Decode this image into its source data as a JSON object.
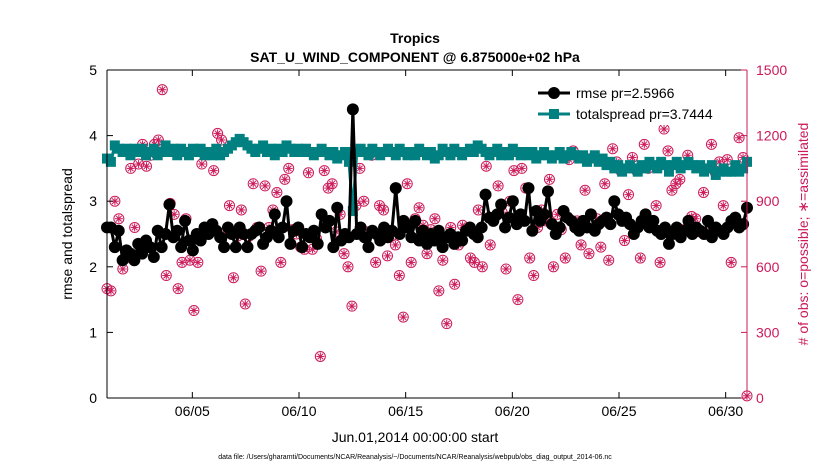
{
  "chart_data": {
    "type": "line",
    "title": "Tropics",
    "subtitle": "SAT_U_WIND_COMPONENT @ 6.875000e+02 hPa",
    "xlabel": "Jun.01,2014 00:00:00 start",
    "ylabel": "rmse and totalspread",
    "y2label": "# of obs: o=possible; ∗=assimilated",
    "footnote": "data file: /Users/gharamti/Documents/NCAR/Reanalysis/~/Documents/NCAR/Reanalysis/webpub/obs_diag_output_2014-06.nc",
    "xlim": [
      1,
      31
    ],
    "ylim": [
      0,
      5
    ],
    "y2lim": [
      0,
      1500
    ],
    "xticks": [
      5,
      10,
      15,
      20,
      25,
      30
    ],
    "xticklabels": [
      "06/05",
      "06/10",
      "06/15",
      "06/20",
      "06/25",
      "06/30"
    ],
    "yticks": [
      0,
      1,
      2,
      3,
      4,
      5
    ],
    "y2ticks": [
      0,
      300,
      600,
      900,
      1200,
      1500
    ],
    "colors": {
      "rmse": "#000000",
      "totalspread": "#008080",
      "obs": "#cc1a5a"
    },
    "legend_position": "top-right",
    "series": [
      {
        "name": "rmse",
        "legend": "rmse pr=2.5966",
        "axis": "left",
        "values": [
          2.6,
          2.6,
          2.3,
          2.55,
          2.1,
          2.25,
          2.2,
          2.1,
          2.35,
          2.2,
          2.4,
          2.3,
          2.15,
          2.55,
          2.3,
          2.5,
          2.95,
          2.45,
          2.55,
          2.3,
          2.7,
          2.4,
          2.25,
          2.5,
          2.4,
          2.6,
          2.5,
          2.65,
          2.55,
          2.45,
          2.3,
          2.6,
          2.5,
          2.3,
          2.6,
          2.5,
          2.3,
          2.5,
          2.55,
          2.6,
          2.35,
          2.45,
          2.55,
          2.8,
          2.45,
          2.6,
          3.0,
          2.35,
          2.55,
          2.6,
          2.3,
          2.5,
          2.45,
          2.55,
          2.35,
          2.8,
          2.6,
          2.7,
          2.3,
          2.9,
          2.4,
          2.5,
          2.45,
          4.4,
          2.5,
          2.6,
          2.45,
          2.3,
          2.55,
          2.5,
          2.4,
          2.6,
          2.45,
          2.55,
          3.2,
          2.5,
          2.7,
          2.6,
          2.45,
          2.7,
          2.4,
          2.55,
          2.35,
          2.5,
          2.4,
          2.55,
          2.3,
          2.45,
          2.5,
          2.35,
          2.45,
          2.4,
          2.55,
          2.6,
          2.5,
          2.45,
          2.6,
          3.1,
          2.75,
          2.7,
          2.8,
          2.95,
          2.6,
          2.75,
          3.0,
          2.65,
          2.8,
          2.7,
          3.2,
          2.55,
          2.85,
          2.7,
          2.8,
          3.15,
          2.65,
          2.5,
          2.6,
          2.85,
          2.75,
          2.7,
          2.6,
          2.55,
          2.7,
          2.6,
          2.8,
          2.55,
          2.65,
          2.7,
          2.75,
          2.65,
          3.0,
          2.8,
          2.7,
          2.75,
          2.65,
          2.5,
          2.6,
          2.7,
          2.8,
          2.6,
          2.7,
          2.55,
          2.5,
          2.6,
          2.35,
          2.5,
          2.6,
          2.45,
          2.55,
          2.7,
          2.5,
          2.6,
          2.55,
          2.5,
          2.7,
          2.45,
          2.6,
          2.55,
          2.5,
          2.6,
          2.7,
          2.75,
          2.6,
          2.65,
          2.9
        ]
      },
      {
        "name": "totalspread",
        "legend": "totalspread pr=3.7444",
        "axis": "left",
        "values": [
          3.65,
          3.6,
          3.85,
          3.8,
          3.75,
          3.8,
          3.7,
          3.8,
          3.75,
          3.8,
          3.7,
          3.75,
          3.8,
          3.7,
          3.75,
          3.85,
          3.75,
          3.8,
          3.7,
          3.8,
          3.75,
          3.7,
          3.8,
          3.75,
          3.8,
          3.7,
          3.75,
          3.7,
          3.8,
          3.7,
          3.75,
          3.8,
          3.85,
          3.9,
          3.95,
          3.9,
          3.85,
          3.8,
          3.75,
          3.8,
          3.85,
          3.75,
          3.8,
          3.7,
          3.8,
          3.75,
          3.85,
          3.8,
          3.75,
          3.8,
          3.75,
          3.8,
          3.75,
          3.7,
          3.75,
          3.8,
          3.75,
          3.7,
          3.75,
          3.65,
          3.7,
          3.75,
          3.6,
          2.85,
          3.75,
          3.8,
          3.75,
          3.7,
          3.8,
          3.75,
          3.7,
          3.75,
          3.8,
          3.75,
          3.7,
          3.8,
          3.75,
          3.7,
          3.75,
          3.7,
          3.8,
          3.75,
          3.7,
          3.75,
          3.65,
          3.7,
          3.8,
          3.75,
          3.7,
          3.8,
          3.75,
          3.7,
          3.75,
          3.8,
          3.75,
          3.85,
          3.8,
          3.75,
          3.7,
          3.75,
          3.8,
          3.7,
          3.75,
          3.7,
          3.8,
          3.75,
          3.7,
          3.75,
          3.7,
          3.75,
          3.65,
          3.7,
          3.75,
          3.7,
          3.65,
          3.7,
          3.75,
          3.65,
          3.7,
          3.75,
          3.7,
          3.65,
          3.7,
          3.6,
          3.65,
          3.7,
          3.6,
          3.65,
          3.55,
          3.6,
          3.5,
          3.55,
          3.45,
          3.5,
          3.55,
          3.5,
          3.45,
          3.55,
          3.5,
          3.6,
          3.55,
          3.5,
          3.6,
          3.55,
          3.45,
          3.55,
          3.6,
          3.5,
          3.55,
          3.6,
          3.55,
          3.5,
          3.55,
          3.45,
          3.5,
          3.55,
          3.4,
          3.45,
          3.5,
          3.45,
          3.45,
          3.55,
          3.45,
          3.5,
          3.6
        ]
      },
      {
        "name": "obs possible",
        "axis": "right",
        "values": [
          500,
          490,
          900,
          820,
          590,
          640,
          1050,
          780,
          1070,
          1160,
          1060,
          1110,
          1160,
          1180,
          1410,
          560,
          890,
          840,
          500,
          620,
          820,
          630,
          400,
          620,
          1070,
          760,
          780,
          1040,
          1210,
          1180,
          760,
          880,
          550,
          740,
          860,
          430,
          740,
          980,
          780,
          580,
          970,
          780,
          860,
          940,
          620,
          1000,
          1050,
          770,
          750,
          690,
          680,
          1030,
          680,
          730,
          190,
          1040,
          960,
          980,
          760,
          840,
          660,
          600,
          420,
          880,
          1050,
          900,
          760,
          1110,
          620,
          880,
          860,
          650,
          740,
          700,
          560,
          370,
          980,
          620,
          820,
          870,
          790,
          660,
          770,
          820,
          490,
          630,
          340,
          780,
          520,
          700,
          790,
          770,
          640,
          620,
          860,
          600,
          1060,
          700,
          820,
          970,
          850,
          590,
          900,
          1040,
          450,
          1050,
          960,
          640,
          560,
          780,
          860,
          810,
          1000,
          600,
          840,
          770,
          640,
          1090,
          1130,
          810,
          700,
          950,
          660,
          1100,
          820,
          690,
          980,
          630,
          1140,
          1080,
          1040,
          720,
          930,
          1100,
          1040,
          640,
          1160,
          1050,
          810,
          880,
          620,
          1230,
          1130,
          950,
          980,
          1000,
          770,
          1110,
          830,
          820,
          760,
          940,
          750,
          1160,
          1030,
          1080,
          880,
          1090,
          620,
          800,
          1190,
          1100,
          10
        ]
      },
      {
        "name": "obs assimilated",
        "axis": "right",
        "values": [
          500,
          490,
          900,
          820,
          590,
          640,
          1050,
          780,
          1070,
          1160,
          1060,
          1110,
          1160,
          1180,
          1410,
          560,
          890,
          840,
          500,
          620,
          820,
          630,
          400,
          620,
          1070,
          760,
          780,
          1040,
          1210,
          1180,
          760,
          880,
          550,
          740,
          860,
          430,
          740,
          980,
          780,
          580,
          970,
          780,
          860,
          940,
          620,
          1000,
          1050,
          770,
          750,
          690,
          680,
          1030,
          680,
          730,
          190,
          1040,
          960,
          980,
          760,
          840,
          660,
          600,
          420,
          880,
          1050,
          900,
          760,
          1110,
          620,
          880,
          860,
          650,
          740,
          700,
          560,
          370,
          980,
          620,
          820,
          870,
          790,
          660,
          770,
          820,
          490,
          630,
          340,
          780,
          520,
          700,
          790,
          770,
          640,
          620,
          860,
          600,
          1060,
          700,
          820,
          970,
          850,
          590,
          900,
          1040,
          450,
          1050,
          960,
          640,
          560,
          780,
          860,
          810,
          1000,
          600,
          840,
          770,
          640,
          1090,
          1130,
          810,
          700,
          950,
          660,
          1100,
          820,
          690,
          980,
          630,
          1140,
          1080,
          1040,
          720,
          930,
          1100,
          1040,
          640,
          1160,
          1050,
          810,
          880,
          620,
          1230,
          1130,
          950,
          980,
          1000,
          770,
          1110,
          830,
          820,
          760,
          940,
          750,
          1160,
          1030,
          1080,
          880,
          1090,
          620,
          800,
          1190,
          1100,
          10
        ]
      }
    ]
  }
}
